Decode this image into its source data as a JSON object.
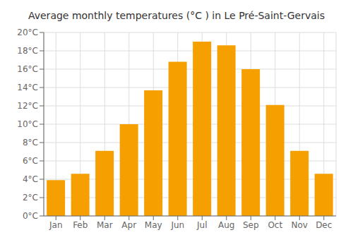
{
  "chart_data": {
    "type": "bar",
    "title": "Average monthly temperatures (°C ) in Le Pré-Saint-Gervais",
    "categories": [
      "Jan",
      "Feb",
      "Mar",
      "Apr",
      "May",
      "Jun",
      "Jul",
      "Aug",
      "Sep",
      "Oct",
      "Nov",
      "Dec"
    ],
    "values": [
      3.9,
      4.6,
      7.1,
      10.0,
      13.7,
      16.8,
      19.0,
      18.6,
      16.0,
      12.1,
      7.1,
      4.6
    ],
    "color": "#F5A000",
    "ylim": [
      0,
      20
    ],
    "yticks": [
      {
        "value": 0,
        "label": "0°C"
      },
      {
        "value": 2,
        "label": "2°C"
      },
      {
        "value": 4,
        "label": "4°C"
      },
      {
        "value": 6,
        "label": "6°C"
      },
      {
        "value": 8,
        "label": "8°C"
      },
      {
        "value": 10,
        "label": "10°C"
      },
      {
        "value": 12,
        "label": "12°C"
      },
      {
        "value": 14,
        "label": "14°C"
      },
      {
        "value": 16,
        "label": "16°C"
      },
      {
        "value": 18,
        "label": "18°C"
      },
      {
        "value": 20,
        "label": "20°C"
      }
    ],
    "grid": true
  }
}
